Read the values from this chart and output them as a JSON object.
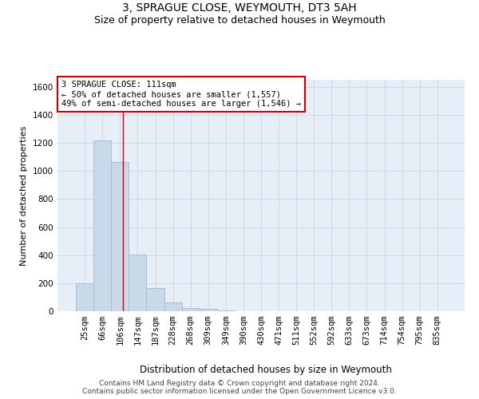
{
  "title": "3, SPRAGUE CLOSE, WEYMOUTH, DT3 5AH",
  "subtitle": "Size of property relative to detached houses in Weymouth",
  "xlabel": "Distribution of detached houses by size in Weymouth",
  "ylabel": "Number of detached properties",
  "categories": [
    "25sqm",
    "66sqm",
    "106sqm",
    "147sqm",
    "187sqm",
    "228sqm",
    "268sqm",
    "309sqm",
    "349sqm",
    "390sqm",
    "430sqm",
    "471sqm",
    "511sqm",
    "552sqm",
    "592sqm",
    "633sqm",
    "673sqm",
    "714sqm",
    "754sqm",
    "795sqm",
    "835sqm"
  ],
  "values": [
    200,
    1220,
    1065,
    405,
    163,
    60,
    25,
    15,
    5,
    0,
    0,
    0,
    0,
    0,
    0,
    0,
    0,
    0,
    0,
    0,
    0
  ],
  "bar_color": "#c9d9ea",
  "bar_edge_color": "#a0b8d0",
  "ylim": [
    0,
    1650
  ],
  "yticks": [
    0,
    200,
    400,
    600,
    800,
    1000,
    1200,
    1400,
    1600
  ],
  "vline_x": 2.18,
  "vline_color": "#cc0000",
  "annotation_text": "3 SPRAGUE CLOSE: 111sqm\n← 50% of detached houses are smaller (1,557)\n49% of semi-detached houses are larger (1,546) →",
  "annotation_box_color": "#ffffff",
  "annotation_box_edge_color": "#cc0000",
  "grid_color": "#d0d8e8",
  "background_color": "#e8eef8",
  "footer_text": "Contains HM Land Registry data © Crown copyright and database right 2024.\nContains public sector information licensed under the Open Government Licence v3.0.",
  "title_fontsize": 10,
  "subtitle_fontsize": 9,
  "xlabel_fontsize": 8.5,
  "ylabel_fontsize": 8,
  "tick_fontsize": 7.5,
  "annotation_fontsize": 7.5,
  "footer_fontsize": 6.5
}
